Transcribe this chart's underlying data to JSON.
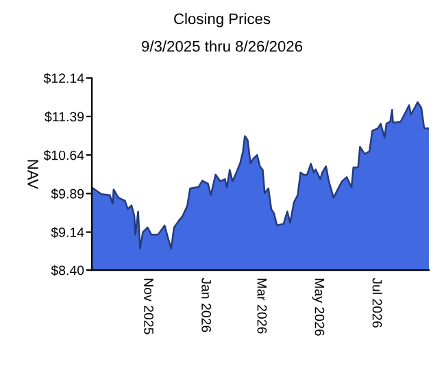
{
  "chart_data": {
    "type": "area",
    "title": "Closing Prices",
    "subtitle": "9/3/2025 thru 8/26/2026",
    "ylabel": "NAV",
    "x": [
      "2025-09-03",
      "2025-09-13",
      "2025-09-22",
      "2025-09-25",
      "2025-09-26",
      "2025-10-01",
      "2025-10-08",
      "2025-10-11",
      "2025-10-15",
      "2025-10-18",
      "2025-10-19",
      "2025-10-22",
      "2025-10-24",
      "2025-10-27",
      "2025-11-01",
      "2025-11-05",
      "2025-11-12",
      "2025-11-19",
      "2025-11-23",
      "2025-11-26",
      "2025-11-29",
      "2025-12-04",
      "2025-12-08",
      "2025-12-13",
      "2025-12-16",
      "2025-12-25",
      "2025-12-29",
      "2026-01-04",
      "2026-01-07",
      "2026-01-12",
      "2026-01-17",
      "2026-01-22",
      "2026-01-24",
      "2026-01-27",
      "2026-01-30",
      "2026-02-03",
      "2026-02-07",
      "2026-02-10",
      "2026-02-12",
      "2026-02-15",
      "2026-02-18",
      "2026-02-21",
      "2026-02-25",
      "2026-02-28",
      "2026-03-03",
      "2026-03-05",
      "2026-03-09",
      "2026-03-12",
      "2026-03-15",
      "2026-03-18",
      "2026-03-22",
      "2026-03-25",
      "2026-03-29",
      "2026-04-01",
      "2026-04-05",
      "2026-04-09",
      "2026-04-12",
      "2026-04-16",
      "2026-04-19",
      "2026-04-23",
      "2026-04-26",
      "2026-04-28",
      "2026-05-03",
      "2026-05-05",
      "2026-05-09",
      "2026-05-12",
      "2026-05-17",
      "2026-05-22",
      "2026-05-26",
      "2026-05-31",
      "2026-06-05",
      "2026-06-07",
      "2026-06-12",
      "2026-06-14",
      "2026-06-19",
      "2026-06-24",
      "2026-06-27",
      "2026-07-03",
      "2026-07-06",
      "2026-07-10",
      "2026-07-12",
      "2026-07-16",
      "2026-07-18",
      "2026-07-19",
      "2026-07-24",
      "2026-07-27",
      "2026-07-31",
      "2026-08-05",
      "2026-08-07",
      "2026-08-11",
      "2026-08-14",
      "2026-08-18",
      "2026-08-21",
      "2026-08-26"
    ],
    "series": [
      {
        "color": "#4169e1",
        "values": [
          10.01,
          9.88,
          9.86,
          9.69,
          9.97,
          9.81,
          9.75,
          9.59,
          9.66,
          9.45,
          9.09,
          9.54,
          8.82,
          9.14,
          9.23,
          9.09,
          9.09,
          9.27,
          9.0,
          8.82,
          9.23,
          9.36,
          9.45,
          9.65,
          9.99,
          10.02,
          10.14,
          10.08,
          9.86,
          10.26,
          10.13,
          10.17,
          10.01,
          10.35,
          10.13,
          10.3,
          10.48,
          10.71,
          11.01,
          10.93,
          10.48,
          10.57,
          10.64,
          10.42,
          10.35,
          9.9,
          9.99,
          9.59,
          9.5,
          9.27,
          9.29,
          9.3,
          9.54,
          9.32,
          9.72,
          9.86,
          10.3,
          10.25,
          10.26,
          10.47,
          10.3,
          10.36,
          10.17,
          10.3,
          10.42,
          10.13,
          9.81,
          9.99,
          10.13,
          10.21,
          10.01,
          10.4,
          10.4,
          10.8,
          10.66,
          10.71,
          11.11,
          11.16,
          11.25,
          10.98,
          11.25,
          11.29,
          11.52,
          11.27,
          11.28,
          11.29,
          11.43,
          11.61,
          11.43,
          11.56,
          11.67,
          11.56,
          11.16,
          11.16
        ]
      }
    ],
    "xlim": [
      "2025-09-03",
      "2026-08-26"
    ],
    "xticks": [
      {
        "value": "2025-11-01",
        "label": "Nov 2025"
      },
      {
        "value": "2026-01-01",
        "label": "Jan 2026"
      },
      {
        "value": "2026-03-01",
        "label": "Mar 2026"
      },
      {
        "value": "2026-05-01",
        "label": "May 2026"
      },
      {
        "value": "2026-07-01",
        "label": "Jul 2026"
      }
    ],
    "ylim": [
      8.4,
      12.14
    ],
    "yticks": [
      {
        "value": 8.4,
        "label": "$8.40"
      },
      {
        "value": 9.14,
        "label": "$9.14"
      },
      {
        "value": 9.89,
        "label": "$9.89"
      },
      {
        "value": 10.64,
        "label": "$10.64"
      },
      {
        "value": 11.39,
        "label": "$11.39"
      },
      {
        "value": 12.14,
        "label": "$12.14"
      }
    ],
    "grid": false
  }
}
